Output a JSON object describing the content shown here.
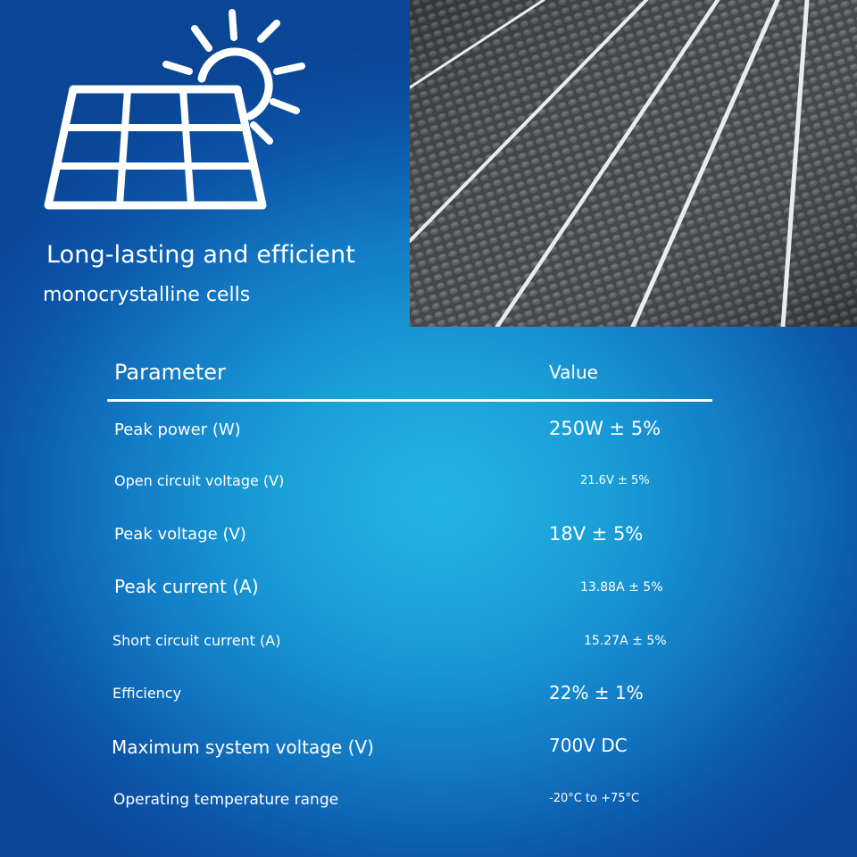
{
  "headline": {
    "line1": "Long-lasting and efficient",
    "line2": "monocrystalline cells"
  },
  "icons": {
    "hero": "solar-panel-sun-icon",
    "photo": "solar-cell-closeup-photo"
  },
  "colors": {
    "text": "#ffffff",
    "background_center": "#22b4e2",
    "background_edge": "#0a4596"
  },
  "table": {
    "header": {
      "parameter": "Parameter",
      "value": "Value"
    },
    "rows": [
      {
        "parameter": "Peak power (W)",
        "value": "250W  ± 5%"
      },
      {
        "parameter": "Open circuit voltage (V)",
        "value": "21.6V ± 5%"
      },
      {
        "parameter": "Peak voltage (V)",
        "value": "18V ±  5%"
      },
      {
        "parameter": "Peak current (A)",
        "value": "13.88A ± 5%"
      },
      {
        "parameter": "Short circuit current (A)",
        "value": "15.27A ± 5%"
      },
      {
        "parameter": "Efficiency",
        "value": "22% ±  1%"
      },
      {
        "parameter": "Maximum system voltage (V)",
        "value": "700V  DC"
      },
      {
        "parameter": "Operating temperature range",
        "value": "-20°C to +75°C"
      }
    ]
  }
}
